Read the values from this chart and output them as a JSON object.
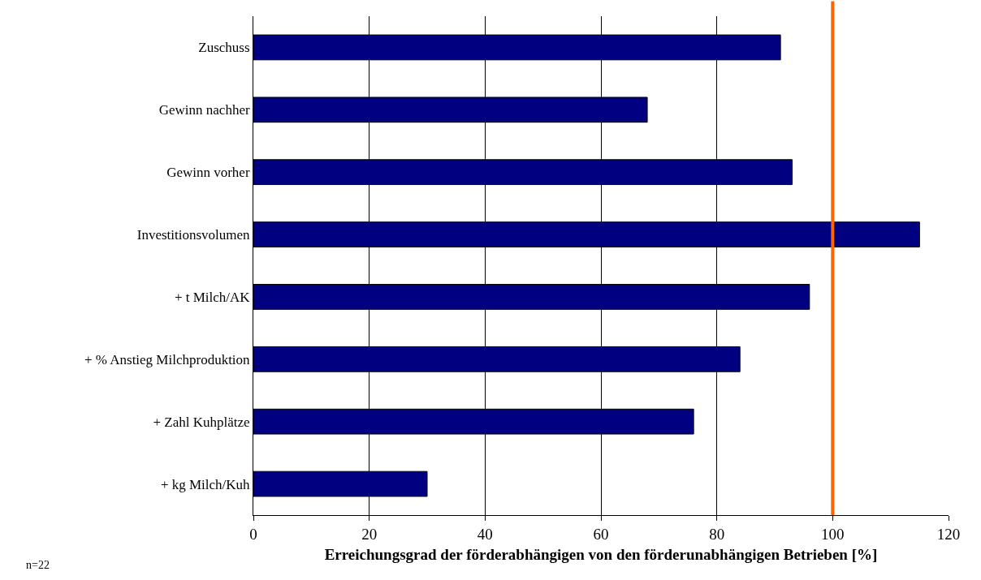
{
  "chart_data": {
    "type": "bar",
    "orientation": "horizontal",
    "categories": [
      "Zuschuss",
      "Gewinn nachher",
      "Gewinn vorher",
      "Investitionsvolumen",
      "+ t Milch/AK",
      "+ % Anstieg Milchproduktion",
      "+ Zahl Kuhplätze",
      "+ kg Milch/Kuh"
    ],
    "values": [
      91,
      68,
      93,
      115,
      96,
      84,
      76,
      30
    ],
    "color": "#000080",
    "xlim": [
      0,
      120
    ],
    "xticks": [
      0,
      20,
      40,
      60,
      80,
      100,
      120
    ],
    "xlabel": "Erreichungsgrad der förderabhängigen von den förderunabhängigen Betrieben [%]",
    "grid": "x",
    "ref_lines": [
      {
        "axis": "x",
        "value": 100,
        "color": "#ff6600"
      }
    ],
    "annotations": [
      "n=22"
    ]
  }
}
